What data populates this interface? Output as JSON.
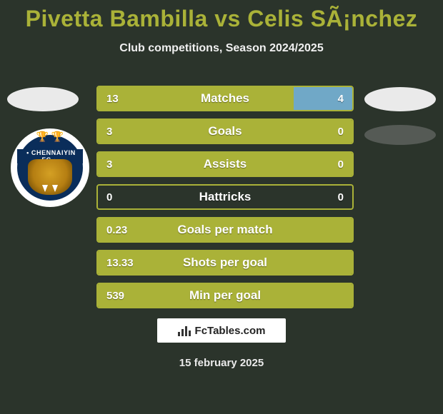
{
  "title": "Pivetta Bambilla vs Celis SÃ¡nchez",
  "subtitle": "Club competitions, Season 2024/2025",
  "crest": {
    "band_text": "CHENNAIYIN FC"
  },
  "stats": {
    "type": "bar-comparison",
    "bar_colors": {
      "left": "#aab238",
      "right": "#70a8c7"
    },
    "border_color": "#aab238",
    "background_color": "#2b342b",
    "text_color": "#ffffff",
    "label_fontsize": 17,
    "value_fontsize": 15,
    "rows": [
      {
        "label": "Matches",
        "left_text": "13",
        "right_text": "4",
        "left_pct": 77,
        "right_pct": 23
      },
      {
        "label": "Goals",
        "left_text": "3",
        "right_text": "0",
        "left_pct": 100,
        "right_pct": 0
      },
      {
        "label": "Assists",
        "left_text": "3",
        "right_text": "0",
        "left_pct": 100,
        "right_pct": 0
      },
      {
        "label": "Hattricks",
        "left_text": "0",
        "right_text": "0",
        "left_pct": 0,
        "right_pct": 0
      },
      {
        "label": "Goals per match",
        "left_text": "0.23",
        "right_text": "",
        "left_pct": 100,
        "right_pct": 0
      },
      {
        "label": "Shots per goal",
        "left_text": "13.33",
        "right_text": "",
        "left_pct": 100,
        "right_pct": 0
      },
      {
        "label": "Min per goal",
        "left_text": "539",
        "right_text": "",
        "left_pct": 100,
        "right_pct": 0
      }
    ]
  },
  "footer": {
    "site": "FcTables.com",
    "date": "15 february 2025"
  },
  "palette": {
    "background": "#2b342b",
    "accent": "#aab238",
    "secondary": "#70a8c7",
    "ellipse_light": "#eaeaea",
    "ellipse_dark": "#555a55",
    "crest_navy": "#0a2d5a",
    "crest_gold": "#d4b23a"
  }
}
